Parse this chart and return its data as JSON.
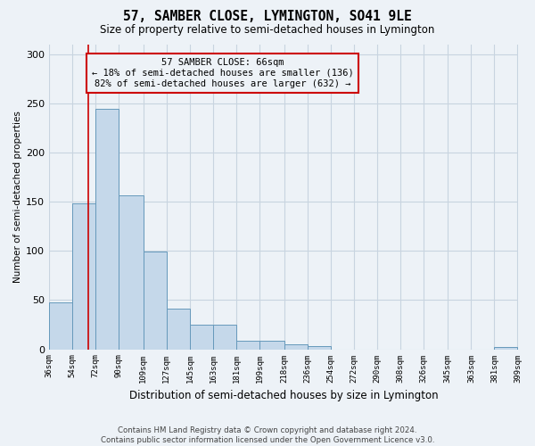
{
  "title": "57, SAMBER CLOSE, LYMINGTON, SO41 9LE",
  "subtitle": "Size of property relative to semi-detached houses in Lymington",
  "xlabel": "Distribution of semi-detached houses by size in Lymington",
  "ylabel": "Number of semi-detached properties",
  "footer_line1": "Contains HM Land Registry data © Crown copyright and database right 2024.",
  "footer_line2": "Contains public sector information licensed under the Open Government Licence v3.0.",
  "bins": [
    36,
    54,
    72,
    90,
    109,
    127,
    145,
    163,
    181,
    199,
    218,
    236,
    254,
    272,
    290,
    308,
    326,
    345,
    363,
    381,
    399
  ],
  "counts": [
    48,
    148,
    245,
    157,
    99,
    41,
    25,
    25,
    9,
    9,
    5,
    3,
    0,
    0,
    0,
    0,
    0,
    0,
    0,
    2
  ],
  "bar_color": "#c5d8ea",
  "bar_edge_color": "#6699bb",
  "grid_color": "#c8d4e0",
  "bg_color": "#edf2f7",
  "annotation_text_line1": "57 SAMBER CLOSE: 66sqm",
  "annotation_text_line2": "← 18% of semi-detached houses are smaller (136)",
  "annotation_text_line3": "82% of semi-detached houses are larger (632) →",
  "property_size": 66,
  "red_line_color": "#cc0000",
  "annotation_box_edge": "#cc0000",
  "ylim": [
    0,
    310
  ],
  "yticks": [
    0,
    50,
    100,
    150,
    200,
    250,
    300
  ]
}
